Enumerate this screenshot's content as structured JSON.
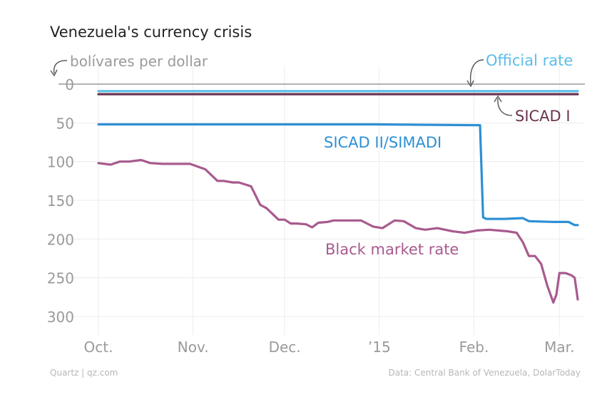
{
  "chart_data": {
    "type": "line",
    "title": "Venezuela's currency crisis",
    "ylabel": "bolívares per dollar",
    "ylim": [
      0,
      300
    ],
    "y_inverted": true,
    "y_ticks": [
      0,
      50,
      100,
      150,
      200,
      250,
      300
    ],
    "x_tick_labels": [
      "Oct.",
      "Nov.",
      "Dec.",
      "’15",
      "Feb.",
      "Mar."
    ],
    "x_tick_days": [
      0,
      31,
      61,
      92,
      123,
      151
    ],
    "x_range_days": [
      0,
      157
    ],
    "series": [
      {
        "name": "Official rate",
        "color": "#5bbde8",
        "x": [
          0,
          157
        ],
        "y": [
          9,
          9
        ]
      },
      {
        "name": "SICAD I",
        "color": "#6b3550",
        "x": [
          0,
          157
        ],
        "y": [
          13,
          13
        ]
      },
      {
        "name": "SICAD II/SIMADI",
        "color": "#2f8fd4",
        "x": [
          0,
          90,
          124,
          125,
          126,
          127,
          133,
          139,
          141,
          149,
          154,
          156,
          157
        ],
        "y": [
          52,
          52,
          53,
          53,
          172,
          174,
          174,
          173,
          177,
          178,
          178,
          182,
          182
        ]
      },
      {
        "name": "Black market rate",
        "color": "#a85a8e",
        "x": [
          0,
          4,
          7,
          10,
          14,
          17,
          21,
          25,
          30,
          35,
          39,
          41,
          44,
          46,
          50,
          53,
          55,
          59,
          61,
          63,
          65,
          68,
          70,
          72,
          75,
          77,
          80,
          82,
          86,
          90,
          93,
          97,
          100,
          104,
          107,
          111,
          116,
          120,
          124,
          128,
          134,
          137,
          139,
          141,
          143,
          145,
          147,
          149,
          150,
          151,
          152,
          153,
          155,
          156,
          157
        ],
        "y": [
          102,
          104,
          100,
          100,
          98,
          102,
          103,
          103,
          103,
          110,
          125,
          125,
          127,
          127,
          132,
          156,
          160,
          175,
          175,
          180,
          180,
          181,
          185,
          179,
          178,
          176,
          176,
          176,
          176,
          184,
          186,
          176,
          177,
          186,
          188,
          186,
          190,
          192,
          189,
          188,
          190,
          192,
          204,
          222,
          222,
          232,
          260,
          282,
          272,
          244,
          244,
          244,
          247,
          250,
          278
        ]
      }
    ],
    "annotations": [
      {
        "text": "Official rate",
        "color": "#5bbde8"
      },
      {
        "text": "SICAD I",
        "color": "#6b3550"
      },
      {
        "text": "SICAD II/SIMADI",
        "color": "#2f8fd4"
      },
      {
        "text": "Black market rate",
        "color": "#a85a8e"
      }
    ]
  },
  "footer": {
    "source_left": "Quartz | qz.com",
    "source_right": "Data: Central Bank of Venezuela, DolarToday"
  }
}
